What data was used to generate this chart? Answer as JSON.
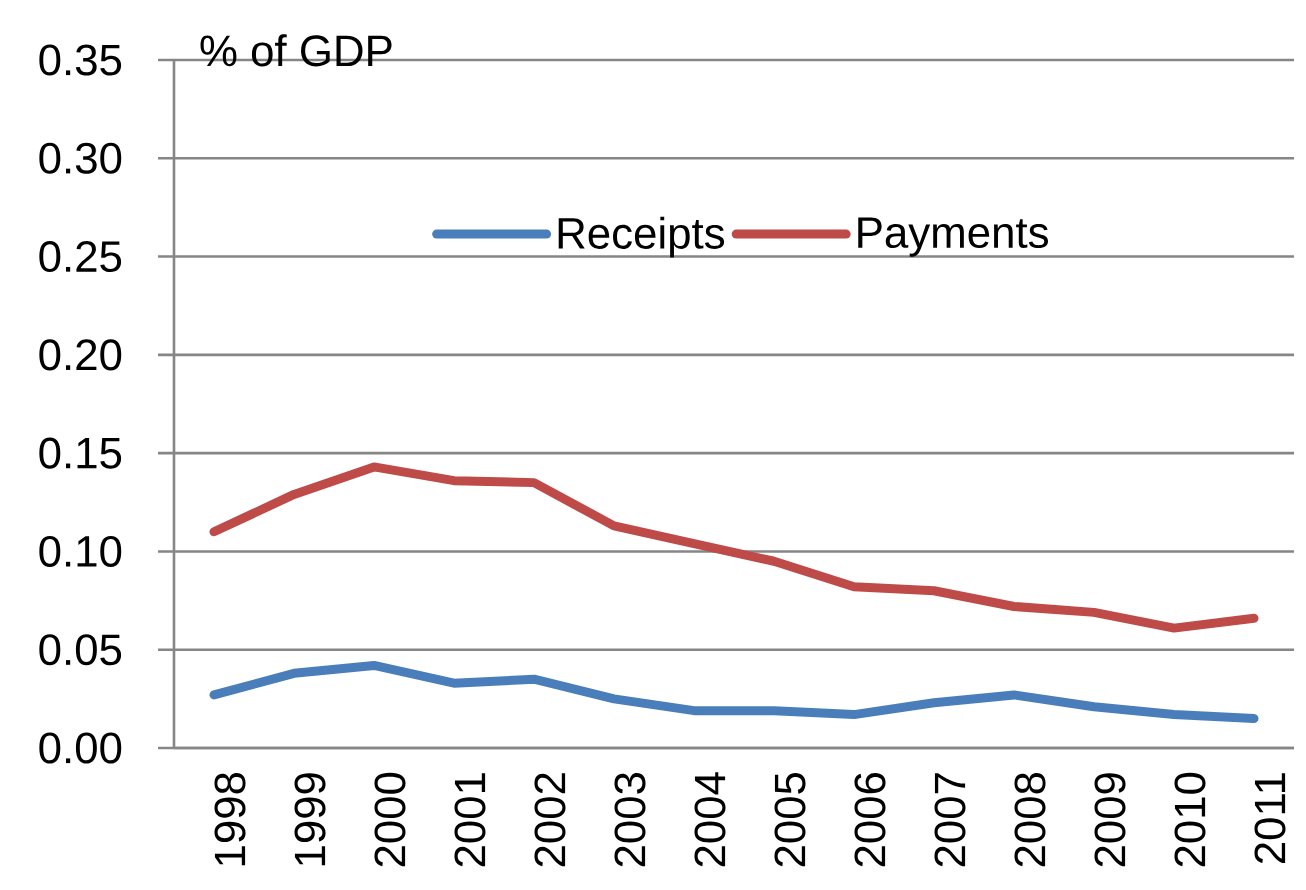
{
  "chart_data": {
    "type": "line",
    "ylabel": "% of GDP",
    "categories": [
      "1998",
      "1999",
      "2000",
      "2001",
      "2002",
      "2003",
      "2004",
      "2005",
      "2006",
      "2007",
      "2008",
      "2009",
      "2010",
      "2011"
    ],
    "series": [
      {
        "name": "Receipts",
        "color": "#4a7ebb",
        "values": [
          0.027,
          0.038,
          0.042,
          0.033,
          0.035,
          0.025,
          0.019,
          0.019,
          0.017,
          0.023,
          0.027,
          0.021,
          0.017,
          0.015
        ]
      },
      {
        "name": "Payments",
        "color": "#be4b48",
        "values": [
          0.11,
          0.129,
          0.143,
          0.136,
          0.135,
          0.113,
          0.104,
          0.095,
          0.082,
          0.08,
          0.072,
          0.069,
          0.061,
          0.066
        ]
      }
    ],
    "ylim": [
      0,
      0.35
    ],
    "yticks": [
      {
        "value": 0,
        "label": "0.00"
      },
      {
        "value": 0.05,
        "label": "0.05"
      },
      {
        "value": 0.1,
        "label": "0.10"
      },
      {
        "value": 0.15,
        "label": "0.15"
      },
      {
        "value": 0.2,
        "label": "0.20"
      },
      {
        "value": 0.25,
        "label": "0.25"
      },
      {
        "value": 0.3,
        "label": "0.30"
      },
      {
        "value": 0.35,
        "label": "0.35"
      }
    ],
    "grid": "y",
    "legend": "top",
    "marker": "none",
    "line_style": "solid"
  }
}
